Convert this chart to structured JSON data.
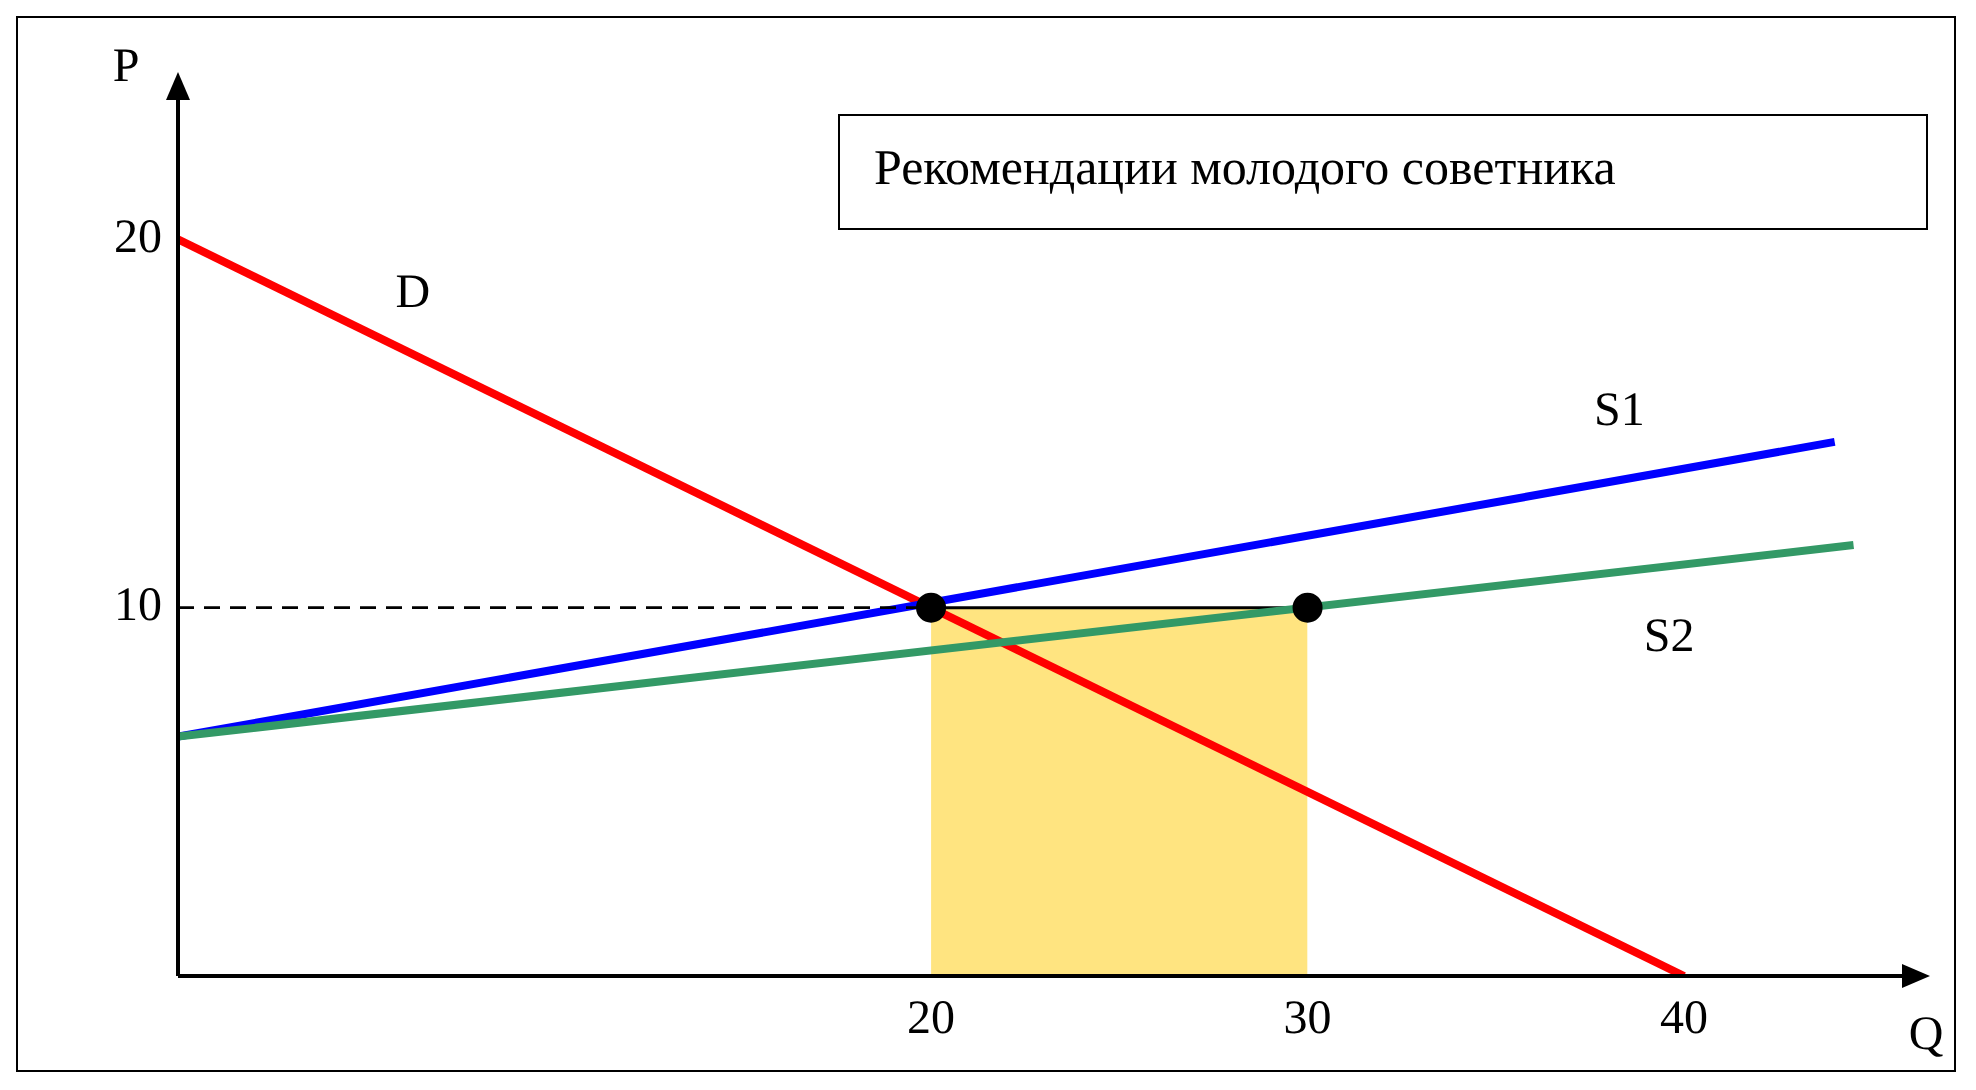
{
  "chart_data": {
    "type": "line",
    "title": "Рекомендации молодого советника",
    "xlabel": "Q",
    "ylabel": "P",
    "xlim": [
      0,
      46
    ],
    "ylim": [
      0,
      24
    ],
    "xticks": [
      20,
      30,
      40
    ],
    "yticks": [
      10,
      20
    ],
    "series": [
      {
        "type": "area",
        "color": "#ffe480",
        "x": [
          20,
          30
        ],
        "values": [
          10,
          10
        ],
        "marker": "none"
      },
      {
        "type": "line",
        "name": "D",
        "color": "#ff0000",
        "x": [
          0,
          40
        ],
        "values": [
          20,
          0
        ],
        "marker": "none",
        "line_style": "solid"
      },
      {
        "type": "line",
        "name": "S1",
        "color": "#0000ff",
        "x": [
          0,
          44
        ],
        "values": [
          6.5,
          14.5
        ],
        "marker": "none",
        "line_style": "solid"
      },
      {
        "type": "line",
        "name": "S2",
        "color": "#339966",
        "x": [
          0,
          44.5
        ],
        "values": [
          6.5,
          11.7
        ],
        "marker": "none",
        "line_style": "solid"
      },
      {
        "type": "line",
        "color": "#000000",
        "x": [
          0,
          20
        ],
        "values": [
          10,
          10
        ],
        "marker": "none",
        "line_style": "dashed"
      },
      {
        "type": "scatter",
        "color": "#000000",
        "x": [
          20,
          30
        ],
        "values": [
          10,
          10
        ],
        "marker": "circle"
      }
    ]
  }
}
